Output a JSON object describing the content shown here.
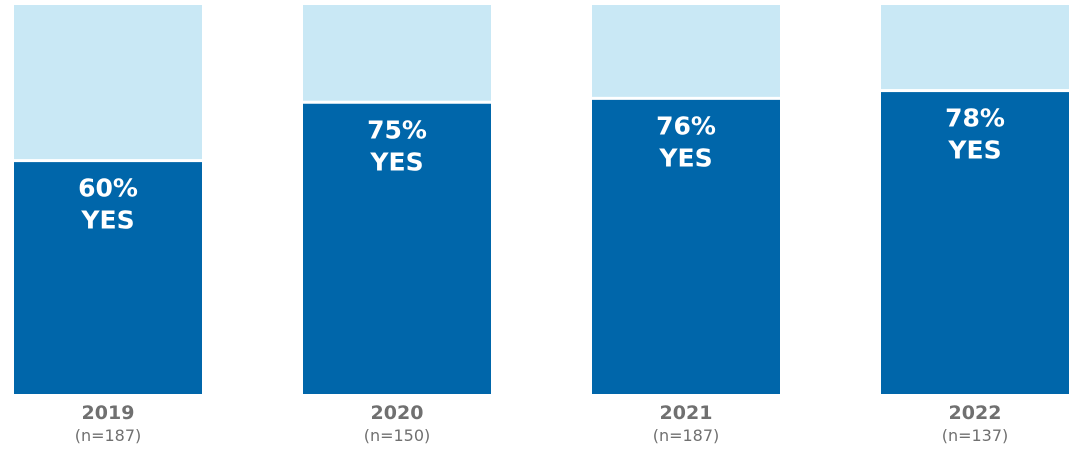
{
  "chart_data": {
    "type": "bar",
    "stacked": true,
    "categories": [
      "2019",
      "2020",
      "2021",
      "2022"
    ],
    "sample_sizes": [
      "(n=187)",
      "(n=150)",
      "(n=187)",
      "(n=137)"
    ],
    "values": [
      60,
      75,
      76,
      78
    ],
    "ylim": [
      0,
      100
    ],
    "value_labels": [
      "60%",
      "75%",
      "76%",
      "78%"
    ],
    "series_label": "YES",
    "colors": {
      "yes": "#0066AA",
      "remainder": "#C9E8F5",
      "label_text": "#FFFFFF",
      "axis_text": "#707070"
    },
    "grid": false,
    "legend": "none"
  }
}
